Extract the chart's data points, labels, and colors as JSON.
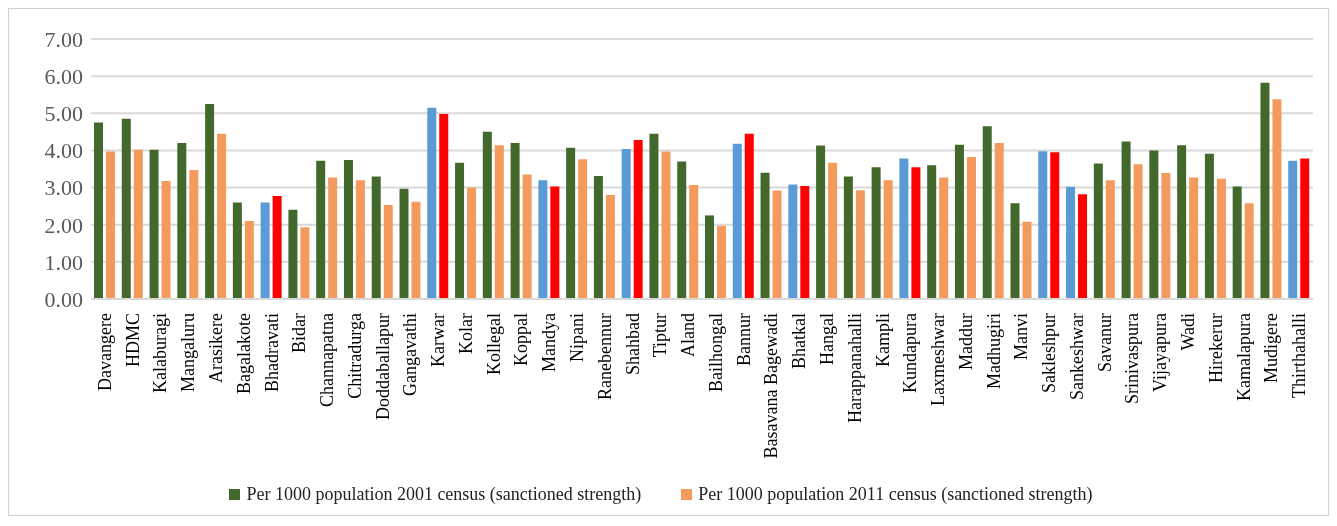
{
  "chart_data": {
    "type": "bar",
    "categories": [
      "Davangere",
      "HDMC",
      "Kalaburagi",
      "Mangaluru",
      "Arasikere",
      "Bagalakote",
      "Bhadravati",
      "Bidar",
      "Channapatna",
      "Chitradurga",
      "Doddaballapur",
      "Gangavathi",
      "Karwar",
      "Kolar",
      "Kollegal",
      "Koppal",
      "Mandya",
      "Nipani",
      "Ranebennur",
      "Shahbad",
      "Tiptur",
      "Aland",
      "Bailhongal",
      "Bannur",
      "Basavana Bagewadi",
      "Bhatkal",
      "Hangal",
      "Harappanahalli",
      "Kampli",
      "Kundapura",
      "Laxmeshwar",
      "Maddur",
      "Madhugiri",
      "Manvi",
      "Sakleshpur",
      "Sankeshwar",
      "Savanur",
      "Srinivaspura",
      "Vijayapura",
      "Wadi",
      "Hirekerur",
      "Kamalapura",
      "Mudigere",
      "Thirthahalli"
    ],
    "series": [
      {
        "name": "Per 1000 population 2001 census (sanctioned strength)",
        "color": "#43682b",
        "values": [
          4.75,
          4.85,
          4.02,
          4.2,
          5.25,
          2.6,
          2.6,
          2.4,
          3.72,
          3.74,
          3.3,
          2.97,
          5.15,
          3.67,
          4.5,
          4.2,
          3.2,
          4.07,
          3.31,
          4.04,
          4.45,
          3.7,
          2.25,
          4.18,
          3.4,
          3.08,
          4.13,
          3.3,
          3.55,
          3.78,
          3.6,
          4.15,
          4.65,
          2.58,
          3.98,
          3.02,
          3.65,
          4.24,
          4.0,
          4.14,
          3.91,
          3.03,
          5.82,
          3.72
        ],
        "colors": [
          "#43682b",
          "#43682b",
          "#43682b",
          "#43682b",
          "#43682b",
          "#43682b",
          "#5b9bd5",
          "#43682b",
          "#43682b",
          "#43682b",
          "#43682b",
          "#43682b",
          "#5b9bd5",
          "#43682b",
          "#43682b",
          "#43682b",
          "#5b9bd5",
          "#43682b",
          "#43682b",
          "#5b9bd5",
          "#43682b",
          "#43682b",
          "#43682b",
          "#5b9bd5",
          "#43682b",
          "#5b9bd5",
          "#43682b",
          "#43682b",
          "#43682b",
          "#5b9bd5",
          "#43682b",
          "#43682b",
          "#43682b",
          "#43682b",
          "#5b9bd5",
          "#5b9bd5",
          "#43682b",
          "#43682b",
          "#43682b",
          "#43682b",
          "#43682b",
          "#43682b",
          "#43682b",
          "#5b9bd5"
        ]
      },
      {
        "name": "Per 1000 population 2011 census (sanctioned strength)",
        "color": "#f39a5c",
        "values": [
          3.97,
          4.02,
          3.18,
          3.47,
          4.45,
          2.1,
          2.77,
          1.93,
          3.27,
          3.2,
          2.53,
          2.62,
          4.98,
          3.0,
          4.14,
          3.35,
          3.03,
          3.76,
          2.8,
          4.28,
          3.97,
          3.07,
          1.97,
          4.45,
          2.92,
          3.04,
          3.67,
          2.93,
          3.2,
          3.55,
          3.27,
          3.82,
          4.2,
          2.08,
          3.95,
          2.82,
          3.2,
          3.63,
          3.39,
          3.27,
          3.24,
          2.58,
          5.38,
          3.78
        ],
        "colors": [
          "#f39a5c",
          "#f39a5c",
          "#f39a5c",
          "#f39a5c",
          "#f39a5c",
          "#f39a5c",
          "#ff0000",
          "#f39a5c",
          "#f39a5c",
          "#f39a5c",
          "#f39a5c",
          "#f39a5c",
          "#ff0000",
          "#f39a5c",
          "#f39a5c",
          "#f39a5c",
          "#ff0000",
          "#f39a5c",
          "#f39a5c",
          "#ff0000",
          "#f39a5c",
          "#f39a5c",
          "#f39a5c",
          "#ff0000",
          "#f39a5c",
          "#ff0000",
          "#f39a5c",
          "#f39a5c",
          "#f39a5c",
          "#ff0000",
          "#f39a5c",
          "#f39a5c",
          "#f39a5c",
          "#f39a5c",
          "#ff0000",
          "#ff0000",
          "#f39a5c",
          "#f39a5c",
          "#f39a5c",
          "#f39a5c",
          "#f39a5c",
          "#f39a5c",
          "#f39a5c",
          "#ff0000"
        ]
      }
    ],
    "ylim": [
      0,
      7
    ],
    "yticks": [
      {
        "value": 0,
        "label": "0.00"
      },
      {
        "value": 1,
        "label": "1.00"
      },
      {
        "value": 2,
        "label": "2.00"
      },
      {
        "value": 3,
        "label": "3.00"
      },
      {
        "value": 4,
        "label": "4.00"
      },
      {
        "value": 5,
        "label": "5.00"
      },
      {
        "value": 6,
        "label": "6.00"
      },
      {
        "value": 7,
        "label": "7.00"
      }
    ],
    "grid": "y",
    "legend": "bottom"
  }
}
